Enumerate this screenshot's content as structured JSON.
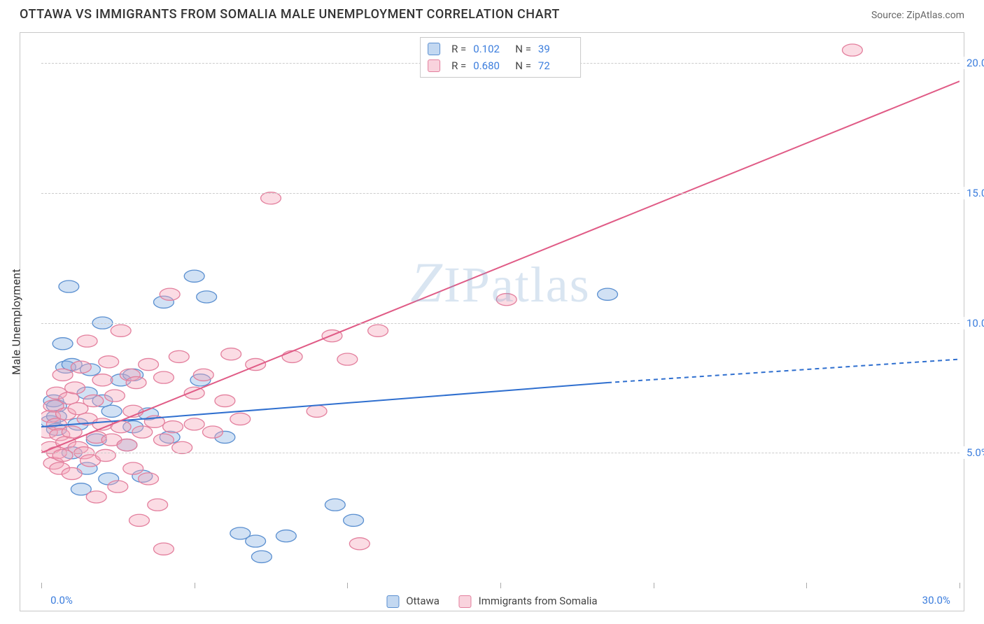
{
  "header": {
    "title": "OTTAWA VS IMMIGRANTS FROM SOMALIA MALE UNEMPLOYMENT CORRELATION CHART",
    "source": "Source: ZipAtlas.com"
  },
  "chart": {
    "type": "scatter",
    "ylabel": "Male Unemployment",
    "watermark": "ZIPatlas",
    "background_color": "#ffffff",
    "grid_color": "#cccccc",
    "axis_color": "#c8c8c8",
    "tick_label_color": "#3b7ddd",
    "xlim": [
      0,
      30
    ],
    "ylim": [
      0,
      21
    ],
    "yticks": [
      5,
      10,
      15,
      20
    ],
    "ytick_labels": [
      "5.0%",
      "10.0%",
      "15.0%",
      "20.0%"
    ],
    "xtick_positions": [
      0,
      5,
      10,
      15,
      20,
      25,
      30
    ],
    "xtick_labels_shown": {
      "0": "0.0%",
      "30": "30.0%"
    },
    "series": [
      {
        "name": "Ottawa",
        "color": "#7aa8e0",
        "fill": "rgba(122,168,224,0.35)",
        "stroke": "#5a8fd0",
        "marker_radius": 9,
        "R": "0.102",
        "N": "39",
        "trend": {
          "x1": 0,
          "y1": 6.0,
          "x2": 18.5,
          "y2": 7.7,
          "dash_from_x": 18.5,
          "dash_to_x": 30,
          "dash_to_y": 8.6,
          "color": "#2f6fcf",
          "width": 2
        },
        "points": [
          [
            0.3,
            6.2
          ],
          [
            0.4,
            7.0
          ],
          [
            0.5,
            6.8
          ],
          [
            0.5,
            5.9
          ],
          [
            0.5,
            6.4
          ],
          [
            0.7,
            9.2
          ],
          [
            0.8,
            8.3
          ],
          [
            0.9,
            11.4
          ],
          [
            1.0,
            5.0
          ],
          [
            1.0,
            8.4
          ],
          [
            1.2,
            6.1
          ],
          [
            1.3,
            3.6
          ],
          [
            1.5,
            4.4
          ],
          [
            1.5,
            7.3
          ],
          [
            1.6,
            8.2
          ],
          [
            1.8,
            5.5
          ],
          [
            2.0,
            7.0
          ],
          [
            2.0,
            10.0
          ],
          [
            2.2,
            4.0
          ],
          [
            2.3,
            6.6
          ],
          [
            2.6,
            7.8
          ],
          [
            2.8,
            5.3
          ],
          [
            3.0,
            6.0
          ],
          [
            3.0,
            8.0
          ],
          [
            3.3,
            4.1
          ],
          [
            3.5,
            6.5
          ],
          [
            4.0,
            10.8
          ],
          [
            4.2,
            5.6
          ],
          [
            5.0,
            11.8
          ],
          [
            5.2,
            7.8
          ],
          [
            5.4,
            11.0
          ],
          [
            6.0,
            5.6
          ],
          [
            6.5,
            1.9
          ],
          [
            7.0,
            1.6
          ],
          [
            7.2,
            1.0
          ],
          [
            8.0,
            1.8
          ],
          [
            9.6,
            3.0
          ],
          [
            10.2,
            2.4
          ],
          [
            18.5,
            11.1
          ]
        ]
      },
      {
        "name": "Immigrants from Somalia",
        "color": "#f4a8bb",
        "fill": "rgba(244,168,187,0.40)",
        "stroke": "#e37f9d",
        "marker_radius": 9,
        "R": "0.680",
        "N": "72",
        "trend": {
          "x1": 0,
          "y1": 5.0,
          "x2": 30,
          "y2": 19.3,
          "color": "#e05b86",
          "width": 2
        },
        "points": [
          [
            0.2,
            5.8
          ],
          [
            0.3,
            6.4
          ],
          [
            0.3,
            5.2
          ],
          [
            0.4,
            6.8
          ],
          [
            0.4,
            4.6
          ],
          [
            0.5,
            5.0
          ],
          [
            0.5,
            6.1
          ],
          [
            0.5,
            7.3
          ],
          [
            0.6,
            4.4
          ],
          [
            0.6,
            5.7
          ],
          [
            0.7,
            8.0
          ],
          [
            0.7,
            4.9
          ],
          [
            0.8,
            6.5
          ],
          [
            0.8,
            5.4
          ],
          [
            0.9,
            7.1
          ],
          [
            1.0,
            5.8
          ],
          [
            1.0,
            4.2
          ],
          [
            1.1,
            7.5
          ],
          [
            1.2,
            5.2
          ],
          [
            1.2,
            6.7
          ],
          [
            1.3,
            8.3
          ],
          [
            1.4,
            5.0
          ],
          [
            1.5,
            6.3
          ],
          [
            1.5,
            9.3
          ],
          [
            1.6,
            4.7
          ],
          [
            1.7,
            7.0
          ],
          [
            1.8,
            5.6
          ],
          [
            1.8,
            3.3
          ],
          [
            2.0,
            6.1
          ],
          [
            2.0,
            7.8
          ],
          [
            2.1,
            4.9
          ],
          [
            2.2,
            8.5
          ],
          [
            2.3,
            5.5
          ],
          [
            2.4,
            7.2
          ],
          [
            2.5,
            3.7
          ],
          [
            2.6,
            6.0
          ],
          [
            2.6,
            9.7
          ],
          [
            2.8,
            5.3
          ],
          [
            2.9,
            8.0
          ],
          [
            3.0,
            4.4
          ],
          [
            3.0,
            6.6
          ],
          [
            3.1,
            7.7
          ],
          [
            3.2,
            2.4
          ],
          [
            3.3,
            5.8
          ],
          [
            3.5,
            8.4
          ],
          [
            3.5,
            4.0
          ],
          [
            3.7,
            6.2
          ],
          [
            3.8,
            3.0
          ],
          [
            4.0,
            5.5
          ],
          [
            4.0,
            7.9
          ],
          [
            4.0,
            1.3
          ],
          [
            4.2,
            11.1
          ],
          [
            4.3,
            6.0
          ],
          [
            4.5,
            8.7
          ],
          [
            4.6,
            5.2
          ],
          [
            5.0,
            7.3
          ],
          [
            5.0,
            6.1
          ],
          [
            5.3,
            8.0
          ],
          [
            5.6,
            5.8
          ],
          [
            6.0,
            7.0
          ],
          [
            6.2,
            8.8
          ],
          [
            6.5,
            6.3
          ],
          [
            7.0,
            8.4
          ],
          [
            7.5,
            14.8
          ],
          [
            8.2,
            8.7
          ],
          [
            9.0,
            6.6
          ],
          [
            9.5,
            9.5
          ],
          [
            10.0,
            8.6
          ],
          [
            10.4,
            1.5
          ],
          [
            11.0,
            9.7
          ],
          [
            15.2,
            10.9
          ],
          [
            26.5,
            20.5
          ]
        ]
      }
    ],
    "bottom_legend": [
      {
        "label": "Ottawa",
        "swatch_fill": "rgba(122,168,224,0.45)",
        "swatch_stroke": "#5a8fd0"
      },
      {
        "label": "Immigrants from Somalia",
        "swatch_fill": "rgba(244,168,187,0.50)",
        "swatch_stroke": "#e37f9d"
      }
    ]
  }
}
